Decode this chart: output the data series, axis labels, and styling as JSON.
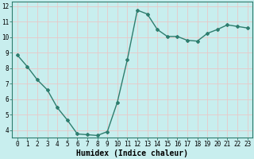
{
  "x": [
    0,
    1,
    2,
    3,
    4,
    5,
    6,
    7,
    8,
    9,
    10,
    11,
    12,
    13,
    14,
    15,
    16,
    17,
    18,
    19,
    20,
    21,
    22,
    23
  ],
  "y": [
    8.85,
    8.1,
    7.25,
    6.6,
    5.45,
    4.65,
    3.75,
    3.7,
    3.65,
    3.9,
    5.8,
    8.55,
    11.75,
    11.5,
    10.5,
    10.05,
    10.05,
    9.8,
    9.75,
    10.25,
    10.5,
    10.8,
    10.7,
    10.6
  ],
  "xlabel": "Humidex (Indice chaleur)",
  "xlim": [
    -0.5,
    23.5
  ],
  "ylim": [
    3.5,
    12.3
  ],
  "yticks": [
    4,
    5,
    6,
    7,
    8,
    9,
    10,
    11,
    12
  ],
  "xticks": [
    0,
    1,
    2,
    3,
    4,
    5,
    6,
    7,
    8,
    9,
    10,
    11,
    12,
    13,
    14,
    15,
    16,
    17,
    18,
    19,
    20,
    21,
    22,
    23
  ],
  "line_color": "#2e7d6e",
  "marker": "D",
  "marker_size": 2.0,
  "bg_color": "#c8eeee",
  "grid_color": "#e8c8c8",
  "line_width": 1.0,
  "xlabel_fontsize": 7.0,
  "tick_fontsize": 5.5
}
